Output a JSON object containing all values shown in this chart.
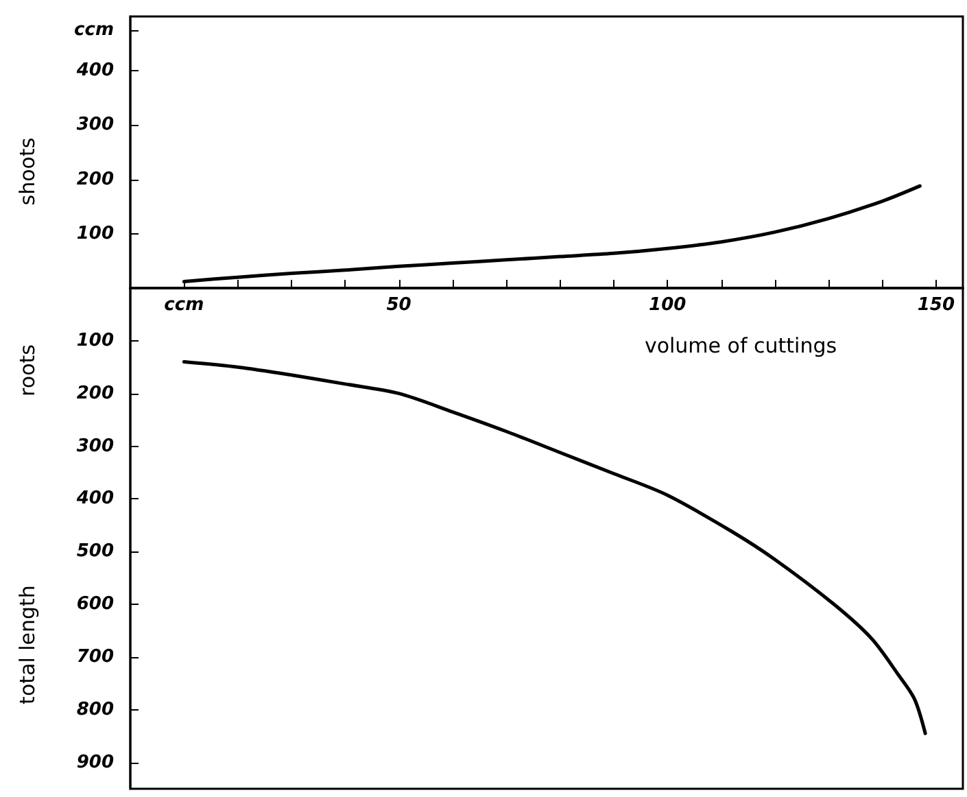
{
  "chart_data": [
    {
      "type": "line",
      "ylabel": "shoots",
      "xlabel": "volume of cuttings",
      "xlim": [
        0,
        155
      ],
      "xticks": [
        {
          "value": 10,
          "label": "ccm"
        },
        {
          "value": 20,
          "label": null
        },
        {
          "value": 30,
          "label": null
        },
        {
          "value": 40,
          "label": null
        },
        50,
        {
          "value": 60,
          "label": null
        },
        {
          "value": 70,
          "label": null
        },
        {
          "value": 80,
          "label": null
        },
        {
          "value": 90,
          "label": null
        },
        100,
        {
          "value": 110,
          "label": null
        },
        {
          "value": 120,
          "label": null
        },
        {
          "value": 130,
          "label": null
        },
        {
          "value": 140,
          "label": null
        },
        150
      ],
      "ylim": [
        0,
        500
      ],
      "yticks": [
        100,
        200,
        300,
        400,
        {
          "value": 475,
          "label": "ccm"
        }
      ],
      "marker": "none",
      "line_style": "solid",
      "series": [
        {
          "color": "#000000",
          "x": [
            10,
            20,
            30,
            40,
            50,
            60,
            70,
            80,
            90,
            100,
            110,
            120,
            130,
            140,
            147
          ],
          "values": [
            12,
            20,
            27,
            33,
            40,
            46,
            52,
            58,
            64,
            73,
            85,
            103,
            128,
            160,
            188
          ]
        }
      ]
    },
    {
      "type": "line",
      "ylabel": "roots",
      "annotations": [
        "total length"
      ],
      "tick_labels": "y",
      "xlim": [
        0,
        155
      ],
      "xticks": [
        10,
        20,
        30,
        40,
        50,
        60,
        70,
        80,
        90,
        100,
        110,
        120,
        130,
        140,
        150
      ],
      "ylim": [
        950,
        0
      ],
      "yticks": [
        100,
        200,
        300,
        400,
        500,
        600,
        700,
        800,
        900
      ],
      "marker": "none",
      "line_style": "solid",
      "series": [
        {
          "color": "#000000",
          "x": [
            10,
            20,
            30,
            40,
            50,
            60,
            70,
            80,
            90,
            100,
            112,
            120,
            131,
            138,
            143,
            146,
            148
          ],
          "values": [
            140,
            150,
            165,
            182,
            200,
            235,
            272,
            312,
            352,
            393,
            462,
            515,
            600,
            665,
            734,
            780,
            845
          ]
        }
      ]
    }
  ]
}
